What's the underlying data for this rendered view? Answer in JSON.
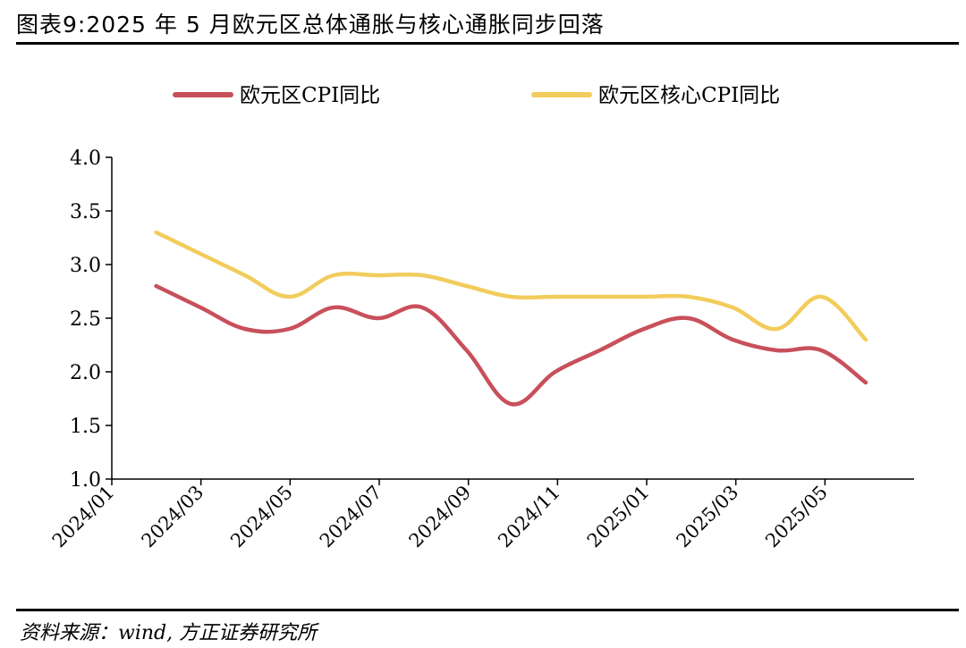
{
  "header": {
    "title": "图表9:2025 年 5 月欧元区总体通胀与核心通胀同步回落"
  },
  "footer": {
    "source": "资料来源：wind, 方正证券研究所"
  },
  "colors": {
    "cpi": "#c8505a",
    "core": "#f2cc5c",
    "axis": "#000000"
  },
  "chart_data": {
    "type": "line",
    "ylim": [
      1.0,
      4.0
    ],
    "yticks": [
      "1.0",
      "1.5",
      "2.0",
      "2.5",
      "3.0",
      "3.5",
      "4.0"
    ],
    "xticks": [
      "2024/01",
      "2024/03",
      "2024/05",
      "2024/07",
      "2024/09",
      "2024/11",
      "2025/01",
      "2025/03",
      "2025/05"
    ],
    "x": [
      "2024/02",
      "2024/03",
      "2024/04",
      "2024/05",
      "2024/06",
      "2024/07",
      "2024/08",
      "2024/09",
      "2024/10",
      "2024/11",
      "2024/12",
      "2025/01",
      "2025/02",
      "2025/03",
      "2025/04",
      "2025/05",
      "2025/06"
    ],
    "legend": "top",
    "series": [
      {
        "name": "欧元区CPI同比",
        "color": "#c8505a",
        "values": [
          2.8,
          2.6,
          2.4,
          2.4,
          2.6,
          2.5,
          2.6,
          2.2,
          1.7,
          2.0,
          2.2,
          2.4,
          2.5,
          2.3,
          2.2,
          2.2,
          1.9
        ]
      },
      {
        "name": "欧元区核心CPI同比",
        "color": "#f2cc5c",
        "values": [
          3.3,
          3.1,
          2.9,
          2.7,
          2.9,
          2.9,
          2.9,
          2.8,
          2.7,
          2.7,
          2.7,
          2.7,
          2.7,
          2.6,
          2.4,
          2.7,
          2.3
        ]
      }
    ]
  }
}
